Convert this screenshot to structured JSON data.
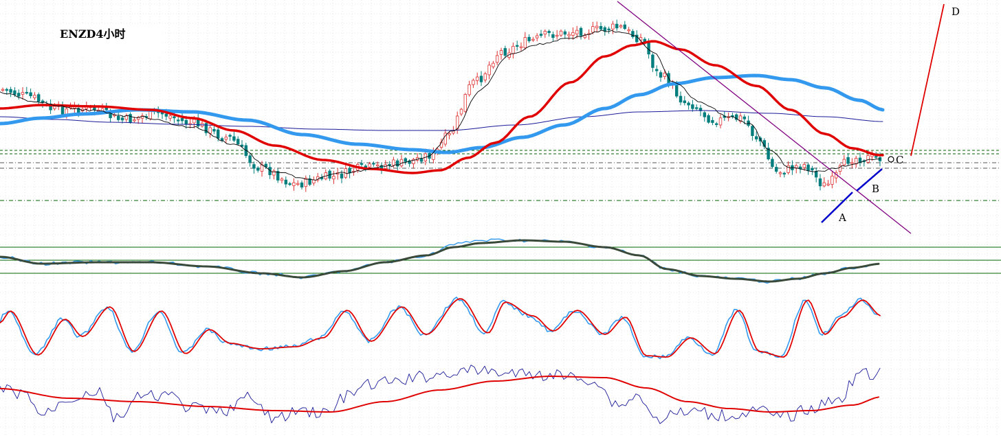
{
  "chart_data": {
    "type": "candlestick",
    "title": "ENZD4小时",
    "labels": {
      "A": "A",
      "B": "B",
      "C": "C",
      "D": "D"
    },
    "colors": {
      "bull": "#e03030",
      "bear": "#007d7d",
      "ma_fast": "#000000",
      "ma_mid": "#e00000",
      "ma_slow": "#3399ee",
      "ma_long": "#1a1a99",
      "trendline": "#800080",
      "support": "#0000cc",
      "projection": "#e00000",
      "guide": "#006600"
    },
    "panels": [
      {
        "name": "price",
        "series": [
          "candles",
          "ma_fast",
          "ma_mid",
          "ma_slow",
          "ma_long"
        ]
      },
      {
        "name": "oscillator_1",
        "series": [
          "fast",
          "slow"
        ]
      },
      {
        "name": "oscillator_2",
        "series": [
          "k",
          "d"
        ]
      },
      {
        "name": "oscillator_3",
        "series": [
          "raw",
          "smooth"
        ]
      }
    ]
  }
}
